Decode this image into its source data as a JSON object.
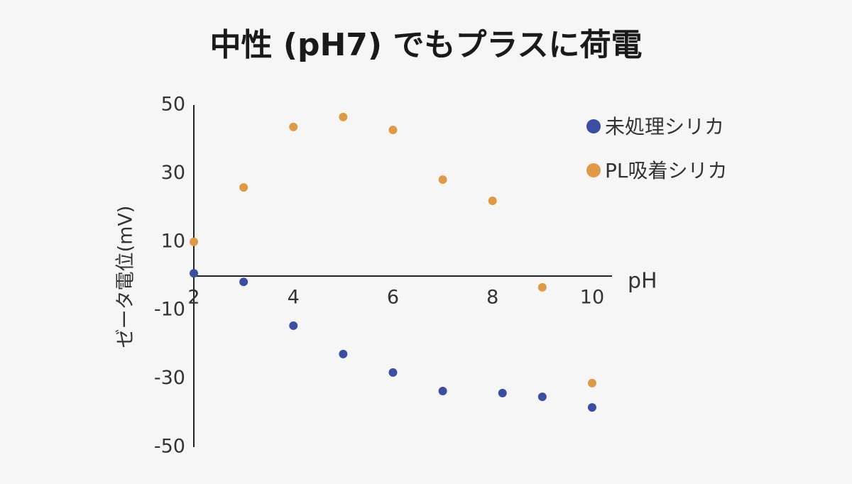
{
  "chart_data": {
    "type": "scatter",
    "title": "中性 (pH7) でもプラスに荷電",
    "x_label": "pH",
    "y_label": "ゼータ電位(mV)",
    "xlim": [
      2,
      10.4
    ],
    "xticks": [
      2,
      4,
      6,
      8,
      10
    ],
    "ylim": [
      -50,
      50
    ],
    "yticks": [
      50,
      30,
      10,
      -10,
      -30,
      -50
    ],
    "legend": "upper right",
    "series": [
      {
        "name": "未処理シリカ",
        "color": "#3a4ea3",
        "x": [
          2,
          3,
          4,
          5,
          6,
          7,
          8.2,
          9,
          10
        ],
        "values": [
          0.8,
          -1.7,
          -14.5,
          -22.8,
          -28.2,
          -33.6,
          -34.2,
          -35.3,
          -38.4
        ]
      },
      {
        "name": "PL吸着シリカ",
        "color": "#e09a45",
        "x": [
          2,
          3,
          4,
          5,
          6,
          7,
          8,
          9,
          10
        ],
        "values": [
          10,
          25.9,
          43.6,
          46.5,
          42.7,
          28.2,
          22,
          -3.3,
          -31.3
        ]
      }
    ]
  }
}
